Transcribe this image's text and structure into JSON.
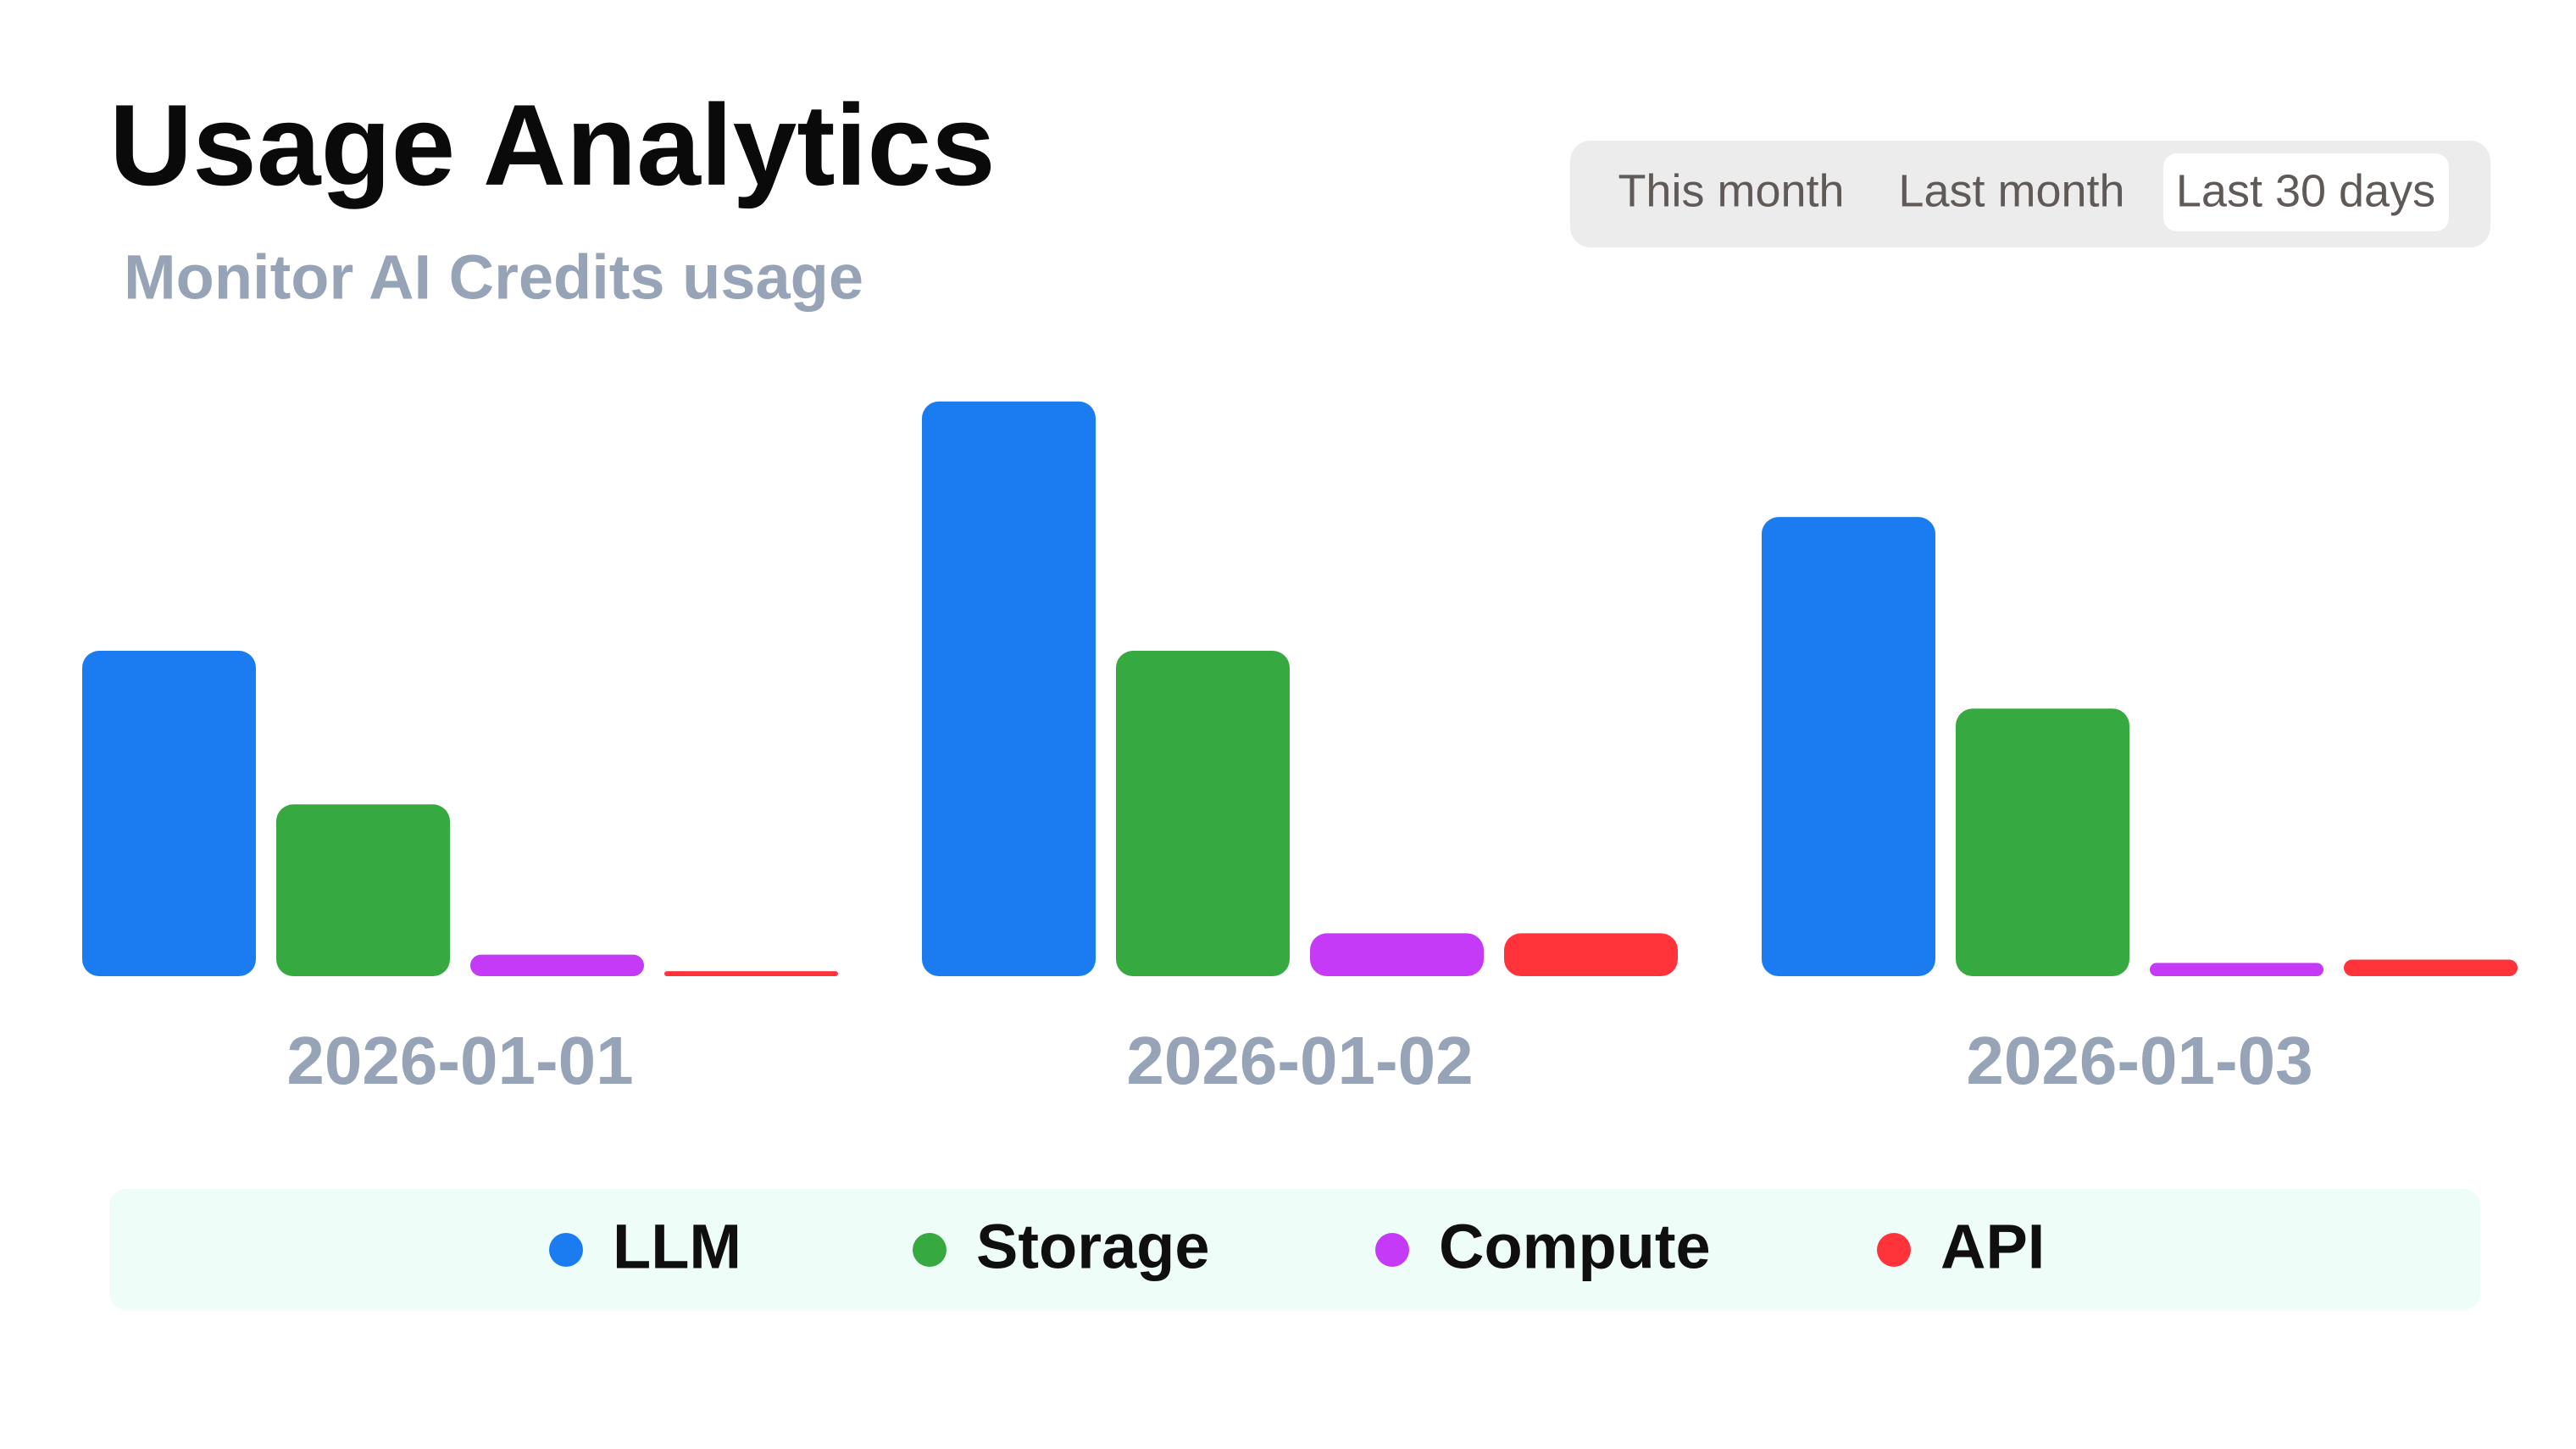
{
  "header": {
    "title": "Usage Analytics",
    "subtitle": "Monitor AI Credits usage"
  },
  "range_selector": {
    "options": [
      "This month",
      "Last month",
      "Last 30 days"
    ],
    "selected": 2
  },
  "chart_data": {
    "type": "bar",
    "categories": [
      "2026-01-01",
      "2026-01-02",
      "2026-01-03"
    ],
    "series": [
      {
        "name": "LLM",
        "color": "#1a7cf0",
        "values": [
          197,
          348,
          278
        ]
      },
      {
        "name": "Storage",
        "color": "#36a940",
        "values": [
          104,
          197,
          162
        ]
      },
      {
        "name": "Compute",
        "color": "#c43af7",
        "values": [
          13,
          26,
          8
        ]
      },
      {
        "name": "API",
        "color": "#ff3339",
        "values": [
          3,
          26,
          10
        ]
      }
    ]
  }
}
